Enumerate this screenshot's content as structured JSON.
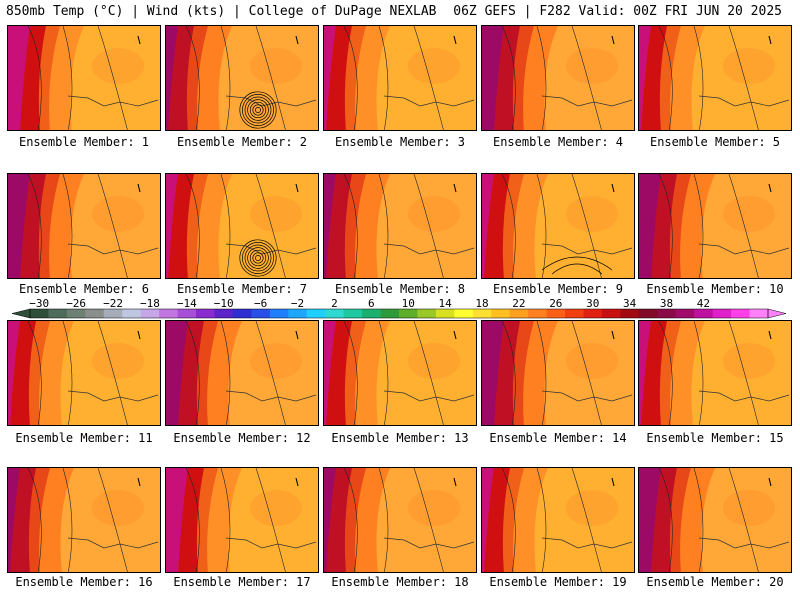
{
  "header": {
    "left": "850mb Temp (°C) | Wind (kts) | College of DuPage NEXLAB",
    "right": "06Z GEFS | F282 Valid: 00Z FRI JUN 20 2025"
  },
  "panel_label_prefix": "Ensemble Member:",
  "panels": [
    {
      "label": "Ensemble Member: 1"
    },
    {
      "label": "Ensemble Member: 2"
    },
    {
      "label": "Ensemble Member: 3"
    },
    {
      "label": "Ensemble Member: 4"
    },
    {
      "label": "Ensemble Member: 5"
    },
    {
      "label": "Ensemble Member: 6"
    },
    {
      "label": "Ensemble Member: 7"
    },
    {
      "label": "Ensemble Member: 8"
    },
    {
      "label": "Ensemble Member: 9"
    },
    {
      "label": "Ensemble Member: 10"
    },
    {
      "label": "Ensemble Member: 11"
    },
    {
      "label": "Ensemble Member: 12"
    },
    {
      "label": "Ensemble Member: 13"
    },
    {
      "label": "Ensemble Member: 14"
    },
    {
      "label": "Ensemble Member: 15"
    },
    {
      "label": "Ensemble Member: 16"
    },
    {
      "label": "Ensemble Member: 17"
    },
    {
      "label": "Ensemble Member: 18"
    },
    {
      "label": "Ensemble Member: 19"
    },
    {
      "label": "Ensemble Member: 20"
    }
  ],
  "colorbar": {
    "ticks": [
      "−30",
      "−26",
      "−22",
      "−18",
      "−14",
      "−10",
      "−6",
      "−2",
      "2",
      "6",
      "10",
      "14",
      "18",
      "22",
      "26",
      "30",
      "34",
      "38",
      "42"
    ],
    "colors": [
      "#2f4f3a",
      "#4f6b5a",
      "#6e7f74",
      "#8a8f8c",
      "#a6acb8",
      "#bfc6e0",
      "#c7a6e8",
      "#c277e0",
      "#a84fd8",
      "#8a2bd0",
      "#5b23c8",
      "#2e2fd0",
      "#2850e8",
      "#1e7fff",
      "#1ea7ff",
      "#1ecfff",
      "#2fd8d0",
      "#1fc8a0",
      "#1ab070",
      "#2f9a3a",
      "#5fae2a",
      "#9ac826",
      "#d8e020",
      "#ffff30",
      "#ffe030",
      "#ffc020",
      "#ffa020",
      "#ff8020",
      "#ff6018",
      "#f04010",
      "#e02010",
      "#c81010",
      "#a00a10",
      "#800a28",
      "#8a0a48",
      "#a00a6a",
      "#c010a0",
      "#e020c8",
      "#ff40e8",
      "#ff80f8"
    ]
  }
}
